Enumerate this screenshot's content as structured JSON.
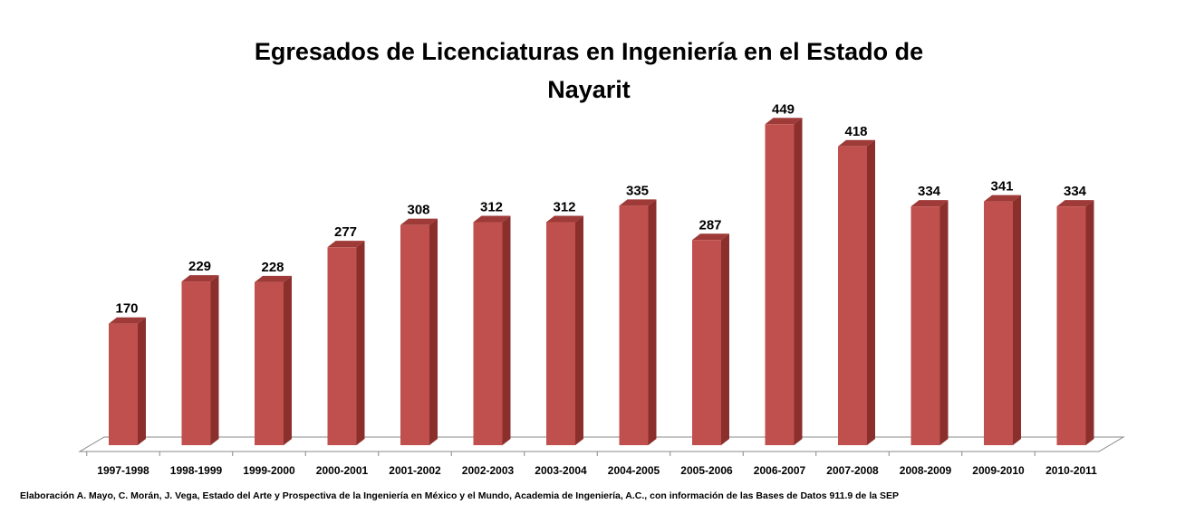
{
  "chart_data": {
    "type": "bar",
    "title": "Egresados de Licenciaturas en Ingeniería en el Estado de Nayarit",
    "categories": [
      "1997-1998",
      "1998-1999",
      "1999-2000",
      "2000-2001",
      "2001-2002",
      "2002-2003",
      "2003-2004",
      "2004-2005",
      "2005-2006",
      "2006-2007",
      "2007-2008",
      "2008-2009",
      "2009-2010",
      "2010-2011"
    ],
    "values": [
      170,
      229,
      228,
      277,
      308,
      312,
      312,
      335,
      287,
      449,
      418,
      334,
      341,
      334
    ],
    "data_labels": [
      "170",
      "229",
      "228",
      "277",
      "308",
      "312",
      "312",
      "335",
      "287",
      "449",
      "418",
      "334",
      "341",
      "334"
    ],
    "xlabel": "",
    "ylabel": "",
    "grid": false,
    "legend": "none",
    "style": "3d-column",
    "colors": {
      "bar_front": "#C0504D",
      "bar_side": "#8B2F2D",
      "bar_top": "#9E3A37",
      "floor": "#888888"
    }
  },
  "source_note": "Elaboración A. Mayo, C. Morán, J. Vega, Estado del Arte y Prospectiva de la Ingeniería en México y el Mundo, Academia de Ingeniería, A.C., con información de las Bases de Datos  911.9  de la SEP"
}
